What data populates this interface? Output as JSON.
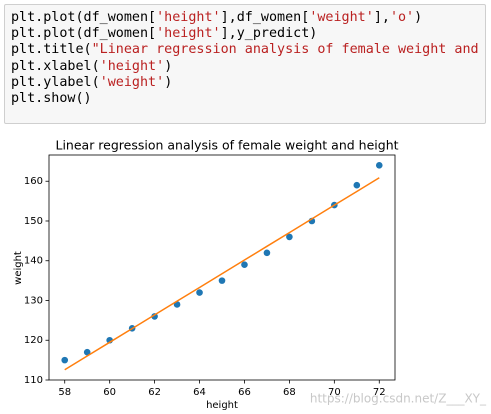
{
  "code": {
    "lines": [
      "plt.plot(df_women['height'],df_women['weight'],'o')",
      "plt.plot(df_women['height'],y_predict)",
      "plt.title(\"Linear regression analysis of female weight and height\")",
      "plt.xlabel('height')",
      "plt.ylabel('weight')",
      "plt.show()"
    ]
  },
  "chart_data": {
    "type": "scatter",
    "title": "Linear regression analysis of female weight and height",
    "x_label": "height",
    "y_label": "weight",
    "x": [
      58,
      59,
      60,
      61,
      62,
      63,
      64,
      65,
      66,
      67,
      68,
      69,
      70,
      71,
      72
    ],
    "series": [
      {
        "type": "scatter",
        "color": "#1f77b4",
        "values": [
          115,
          117,
          120,
          123,
          126,
          129,
          132,
          135,
          139,
          142,
          146,
          150,
          154,
          159,
          164
        ]
      },
      {
        "type": "line",
        "color": "#ff7f0e",
        "values": [
          112.58,
          116.03,
          119.48,
          122.93,
          126.38,
          129.83,
          133.28,
          136.73,
          140.18,
          143.63,
          147.08,
          150.53,
          153.98,
          157.43,
          160.88
        ]
      }
    ],
    "xlim": [
      57.3,
      72.7
    ],
    "ylim": [
      110.0,
      166.6
    ],
    "xticks": [
      58,
      60,
      62,
      64,
      66,
      68,
      70,
      72
    ],
    "yticks": [
      110,
      120,
      130,
      140,
      150,
      160
    ]
  },
  "watermark": "https://blog.csdn.net/Z___XY_"
}
